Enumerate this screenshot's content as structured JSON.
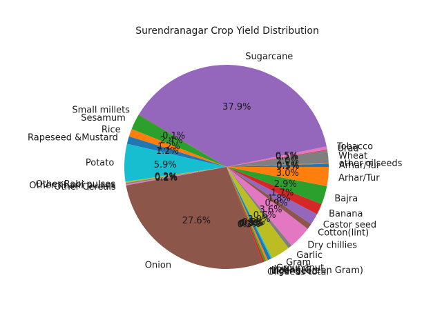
{
  "chart_data": {
    "type": "pie",
    "title": "Surendranagar Crop Yield Distribution",
    "autopct_format": "{:.1f}%",
    "start_angle_deg": 0,
    "direction": "counterclockwise",
    "slices": [
      {
        "label": "Arhar/Tur",
        "value": 0.5,
        "color": "#1f77b4"
      },
      {
        "label": "other oilseeds",
        "value": 0.1,
        "color": "#ff7f0e"
      },
      {
        "label": "Wheat",
        "value": 2.0,
        "color": "#7f7f7f"
      },
      {
        "label": "Urad",
        "value": 0.1,
        "color": "#d62728"
      },
      {
        "label": "Tobacco",
        "value": 0.5,
        "color": "#e377c2"
      },
      {
        "label": "Sugarcane",
        "value": 37.9,
        "color": "#9467bd"
      },
      {
        "label": "Small millets",
        "value": 0.1,
        "color": "#8c564b"
      },
      {
        "label": "Sesamum",
        "value": 2.4,
        "color": "#2ca02c"
      },
      {
        "label": "Rice",
        "value": 1.2,
        "color": "#ff7f0e"
      },
      {
        "label": "Rapeseed &Mustard",
        "value": 1.2,
        "color": "#1f77b4"
      },
      {
        "label": "Potato",
        "value": 5.9,
        "color": "#17becf"
      },
      {
        "label": "Other Rabi pulses",
        "value": 0.2,
        "color": "#bcbd22"
      },
      {
        "label": "Other Kharif pulses",
        "value": 0.2,
        "color": "#7f7f7f"
      },
      {
        "label": "Other Cereals",
        "value": 0.2,
        "color": "#e377c2"
      },
      {
        "label": "Onion",
        "value": 27.6,
        "color": "#8c564b"
      },
      {
        "label": "Oilseeds total",
        "value": 0.3,
        "color": "#d62728"
      },
      {
        "label": "Niger seed",
        "value": 0.3,
        "color": "#2ca02c"
      },
      {
        "label": "Moong(Green Gram)",
        "value": 0.3,
        "color": "#ff7f0e"
      },
      {
        "label": "Jowar",
        "value": 0.5,
        "color": "#1f77b4"
      },
      {
        "label": "Groundnut",
        "value": 0.2,
        "color": "#17becf"
      },
      {
        "label": "Gram",
        "value": 3.0,
        "color": "#bcbd22"
      },
      {
        "label": "Garlic",
        "value": 0.6,
        "color": "#7f7f7f"
      },
      {
        "label": "Dry chillies",
        "value": 3.6,
        "color": "#e377c2"
      },
      {
        "label": "Cotton(lint)",
        "value": 0.9,
        "color": "#8c564b"
      },
      {
        "label": "Castor seed",
        "value": 1.8,
        "color": "#9467bd"
      },
      {
        "label": "Banana",
        "value": 1.7,
        "color": "#d62728"
      },
      {
        "label": "Bajra",
        "value": 2.9,
        "color": "#2ca02c"
      },
      {
        "label": "Arhar/Tur",
        "value": 3.0,
        "color": "#ff7f0e"
      }
    ]
  }
}
